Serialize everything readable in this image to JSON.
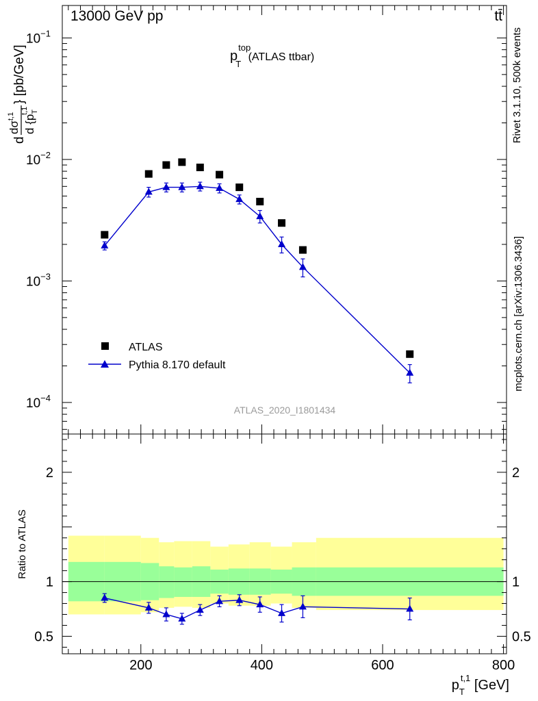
{
  "header": {
    "left": "13000 GeV pp",
    "right": "tt̄"
  },
  "side_labels": {
    "rivet": "Rivet 3.1.10,  500k events",
    "mcplots": "mcplots.cern.ch [arXiv:1306.3436]"
  },
  "colors": {
    "mc": "#0000cc",
    "band_inner": "#99ff99",
    "band_outer": "#ffff99",
    "data": "#000000",
    "watermark": "#9a9a9a"
  },
  "chart_data": [
    {
      "type": "scatter",
      "title": {
        "main": "p",
        "sup": "top",
        "sub": "T",
        "tail": " (ATLAS ttbar)"
      },
      "ylabel": {
        "prefix": "d",
        "numer": "dσ",
        "numer_sup": "t,1",
        "denom": "d {p",
        "denom_sub": "T",
        "denom_sup": "t,1",
        "suffix": "} [pb/GeV]"
      },
      "yscale": "log",
      "ylim": [
        5.5e-05,
        0.185
      ],
      "xlim": [
        70,
        805
      ],
      "yticks": [
        {
          "value": 0.1,
          "base": "10",
          "exp": "−1"
        },
        {
          "value": 0.01,
          "base": "10",
          "exp": "−2"
        },
        {
          "value": 0.001,
          "base": "10",
          "exp": "−3"
        },
        {
          "value": 0.0001,
          "base": "10",
          "exp": "−4"
        }
      ],
      "watermark": "ATLAS_2020_I1801434",
      "legend": {
        "placement": "lower-left",
        "entries": [
          "ATLAS",
          "Pythia 8.170 default"
        ]
      },
      "x": [
        140,
        213,
        242,
        268,
        298,
        330,
        363,
        397,
        433,
        468,
        645
      ],
      "series": [
        {
          "name": "ATLAS",
          "values": [
            0.0024,
            0.0076,
            0.009,
            0.0095,
            0.0086,
            0.0075,
            0.0059,
            0.0045,
            0.003,
            0.0018,
            0.00025
          ]
        },
        {
          "name": "Pythia 8.170 default",
          "values": [
            0.00195,
            0.0054,
            0.0059,
            0.0059,
            0.006,
            0.0058,
            0.0047,
            0.0034,
            0.002,
            0.0013,
            0.000175
          ],
          "err": [
            0.00015,
            0.0005,
            0.0005,
            0.0005,
            0.0005,
            0.0005,
            0.0004,
            0.0004,
            0.0003,
            0.00022,
            3e-05
          ]
        }
      ]
    },
    {
      "type": "line",
      "ylabel": "Ratio to ATLAS",
      "ylim": [
        0.34,
        2.35
      ],
      "xlim": [
        70,
        805
      ],
      "xlabel": {
        "main": "p",
        "sub": "T",
        "sup": "t,1",
        "tail": " [GeV]"
      },
      "xticks": [
        200,
        400,
        600,
        800
      ],
      "yticks": [
        0.5,
        1,
        2
      ],
      "reference": 1,
      "bands": [
        {
          "x0": 80,
          "x1": 140,
          "inner": [
            0.82,
            1.18
          ],
          "outer": [
            0.7,
            1.42
          ]
        },
        {
          "x0": 140,
          "x1": 200,
          "inner": [
            0.82,
            1.18
          ],
          "outer": [
            0.7,
            1.42
          ]
        },
        {
          "x0": 200,
          "x1": 230,
          "inner": [
            0.83,
            1.17
          ],
          "outer": [
            0.72,
            1.4
          ]
        },
        {
          "x0": 230,
          "x1": 255,
          "inner": [
            0.85,
            1.14
          ],
          "outer": [
            0.76,
            1.36
          ]
        },
        {
          "x0": 255,
          "x1": 285,
          "inner": [
            0.86,
            1.13
          ],
          "outer": [
            0.77,
            1.37
          ]
        },
        {
          "x0": 285,
          "x1": 315,
          "inner": [
            0.86,
            1.14
          ],
          "outer": [
            0.76,
            1.37
          ]
        },
        {
          "x0": 315,
          "x1": 345,
          "inner": [
            0.89,
            1.11
          ],
          "outer": [
            0.8,
            1.32
          ]
        },
        {
          "x0": 345,
          "x1": 380,
          "inner": [
            0.88,
            1.12
          ],
          "outer": [
            0.78,
            1.34
          ]
        },
        {
          "x0": 380,
          "x1": 415,
          "inner": [
            0.88,
            1.12
          ],
          "outer": [
            0.78,
            1.36
          ]
        },
        {
          "x0": 415,
          "x1": 450,
          "inner": [
            0.89,
            1.11
          ],
          "outer": [
            0.8,
            1.32
          ]
        },
        {
          "x0": 450,
          "x1": 490,
          "inner": [
            0.87,
            1.13
          ],
          "outer": [
            0.76,
            1.36
          ]
        },
        {
          "x0": 490,
          "x1": 800,
          "inner": [
            0.87,
            1.13
          ],
          "outer": [
            0.74,
            1.4
          ]
        }
      ],
      "x": [
        140,
        213,
        242,
        268,
        298,
        330,
        363,
        397,
        433,
        468,
        645
      ],
      "series": [
        {
          "name": "Pythia 8.170 default",
          "values": [
            0.85,
            0.76,
            0.7,
            0.66,
            0.74,
            0.82,
            0.83,
            0.79,
            0.71,
            0.77,
            0.75
          ],
          "err": [
            0.04,
            0.05,
            0.06,
            0.05,
            0.05,
            0.05,
            0.05,
            0.07,
            0.08,
            0.1,
            0.1
          ]
        }
      ]
    }
  ]
}
